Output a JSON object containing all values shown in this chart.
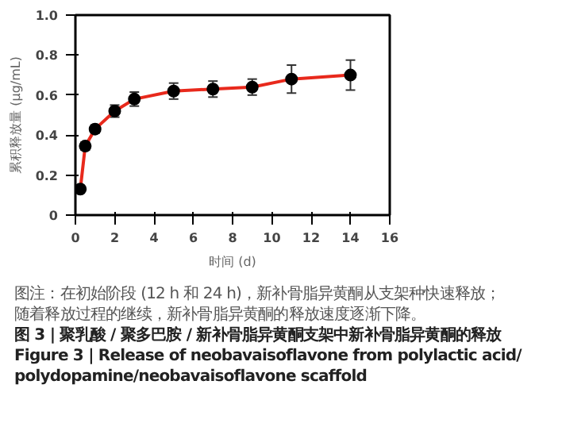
{
  "chart_data": {
    "type": "line",
    "xlabel": "时间 (d)",
    "ylabel": "累积释放量 (μg/mL)",
    "x": [
      0.25,
      0.5,
      1,
      2,
      3,
      5,
      7,
      9,
      11,
      14
    ],
    "series": [
      {
        "color": "#e8291c",
        "values": [
          0.13,
          0.345,
          0.43,
          0.52,
          0.58,
          0.62,
          0.63,
          0.64,
          0.68,
          0.7
        ],
        "errors": [
          null,
          0.02,
          0.02,
          0.03,
          0.035,
          0.04,
          0.04,
          0.04,
          0.07,
          0.075
        ]
      }
    ],
    "marker": "circle",
    "xlim": [
      0,
      16
    ],
    "xticks": [
      0,
      2,
      4,
      6,
      8,
      10,
      12,
      14,
      16
    ],
    "ylim": [
      0,
      1.0
    ],
    "yticks": [
      0,
      0.2,
      0.4,
      0.6,
      0.8,
      {
        "value": 1.0,
        "label": "1.0"
      }
    ],
    "grid": false,
    "annotations": [
      "图注：在初始阶段 (12 h 和 24 h)，新补骨脂异黄酮从支架种快速释放；",
      "随着释放过程的继续，新补骨脂异黄酮的释放速度逐渐下降。",
      "图 3 | 聚乳酸 / 聚多巴胺 / 新补骨脂异黄酮支架中新补骨脂异黄酮的释放",
      "Figure 3  |  Release of neobavaisoflavone from polylactic acid/",
      "polydopamine/neobavaisoflavone scaffold"
    ]
  }
}
